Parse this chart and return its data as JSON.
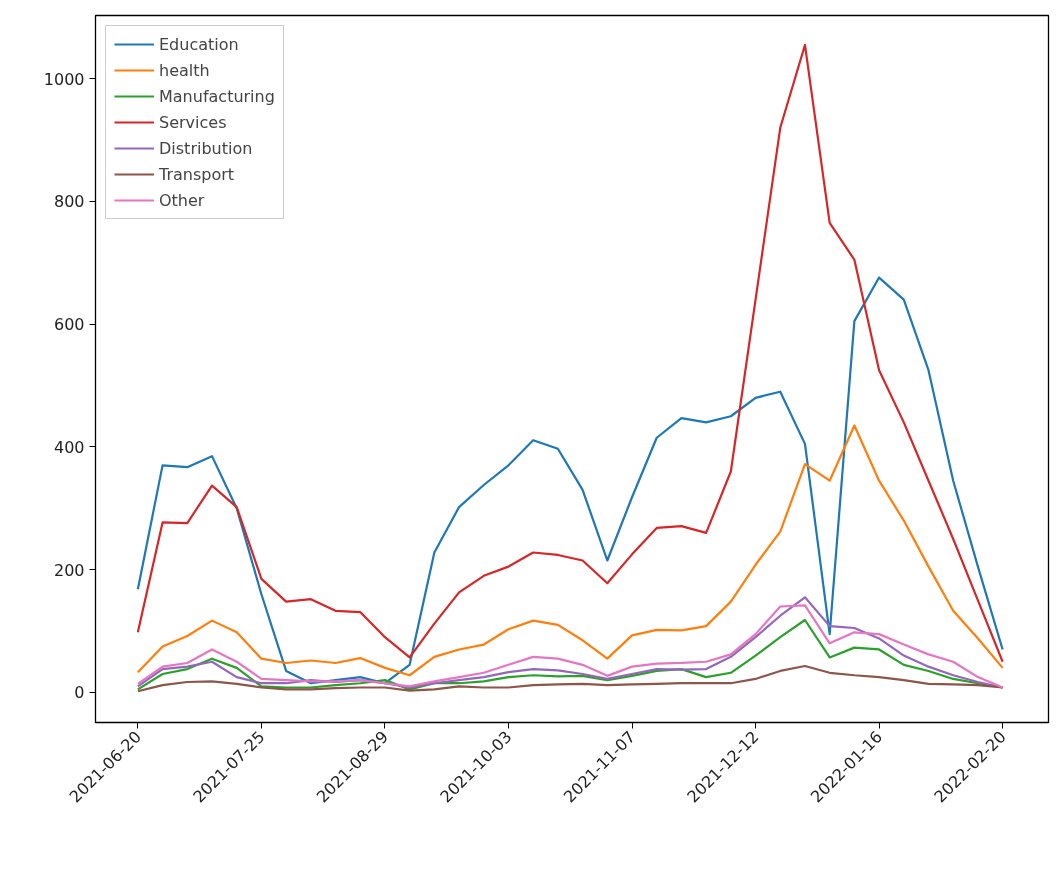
{
  "chart_data": {
    "type": "line",
    "x": [
      "2021-06-20",
      "2021-06-27",
      "2021-07-04",
      "2021-07-11",
      "2021-07-18",
      "2021-07-25",
      "2021-08-01",
      "2021-08-08",
      "2021-08-15",
      "2021-08-22",
      "2021-08-29",
      "2021-09-05",
      "2021-09-12",
      "2021-09-19",
      "2021-09-26",
      "2021-10-03",
      "2021-10-10",
      "2021-10-17",
      "2021-10-24",
      "2021-10-31",
      "2021-11-07",
      "2021-11-14",
      "2021-11-21",
      "2021-11-28",
      "2021-12-05",
      "2021-12-12",
      "2021-12-19",
      "2021-12-26",
      "2022-01-02",
      "2022-01-09",
      "2022-01-16",
      "2022-01-23",
      "2022-01-30",
      "2022-02-06",
      "2022-02-13",
      "2022-02-20"
    ],
    "series": [
      {
        "name": "Education",
        "color": "#1f77b4",
        "values": [
          168,
          370,
          367,
          385,
          300,
          160,
          35,
          15,
          20,
          25,
          15,
          45,
          228,
          302,
          338,
          370,
          411,
          397,
          330,
          215,
          318,
          415,
          447,
          440,
          450,
          480,
          490,
          405,
          95,
          605,
          676,
          640,
          525,
          345,
          205,
          70
        ]
      },
      {
        "name": "health",
        "color": "#ff7f0e",
        "values": [
          33,
          75,
          92,
          117,
          98,
          55,
          48,
          52,
          48,
          56,
          40,
          28,
          58,
          70,
          78,
          103,
          117,
          110,
          85,
          55,
          93,
          102,
          101,
          108,
          148,
          208,
          262,
          372,
          345,
          435,
          345,
          280,
          205,
          133,
          88,
          40
        ]
      },
      {
        "name": "Manufacturing",
        "color": "#2ca02c",
        "values": [
          5,
          30,
          38,
          55,
          40,
          10,
          8,
          8,
          12,
          15,
          20,
          5,
          15,
          15,
          18,
          25,
          28,
          26,
          27,
          20,
          27,
          35,
          38,
          25,
          32,
          60,
          90,
          118,
          57,
          73,
          70,
          45,
          35,
          22,
          15,
          8
        ]
      },
      {
        "name": "Services",
        "color": "#d62728",
        "values": [
          98,
          277,
          276,
          337,
          302,
          185,
          148,
          152,
          133,
          131,
          90,
          57,
          112,
          163,
          190,
          205,
          228,
          224,
          215,
          178,
          225,
          268,
          271,
          260,
          360,
          640,
          920,
          1055,
          765,
          705,
          525,
          440,
          345,
          250,
          150,
          50
        ]
      },
      {
        "name": "Distribution",
        "color": "#9467bd",
        "values": [
          10,
          38,
          42,
          50,
          25,
          15,
          15,
          20,
          17,
          20,
          15,
          8,
          15,
          20,
          25,
          33,
          38,
          36,
          30,
          22,
          30,
          38,
          37,
          38,
          58,
          90,
          125,
          155,
          108,
          105,
          88,
          60,
          42,
          28,
          17,
          8
        ]
      },
      {
        "name": "Transport",
        "color": "#8c564b",
        "values": [
          2,
          12,
          17,
          18,
          14,
          8,
          5,
          5,
          7,
          8,
          8,
          3,
          5,
          10,
          8,
          8,
          12,
          13,
          14,
          12,
          13,
          14,
          15,
          15,
          15,
          22,
          35,
          43,
          32,
          28,
          25,
          20,
          14,
          13,
          12,
          8
        ]
      },
      {
        "name": "Other",
        "color": "#e377c2",
        "values": [
          14,
          42,
          48,
          70,
          50,
          22,
          20,
          18,
          18,
          20,
          15,
          10,
          18,
          25,
          32,
          45,
          58,
          55,
          45,
          27,
          42,
          47,
          48,
          50,
          62,
          95,
          140,
          142,
          80,
          98,
          95,
          78,
          62,
          50,
          25,
          8
        ]
      }
    ],
    "xlim": [
      "2021-06-08",
      "2022-03-05"
    ],
    "xticks": [
      "2021-06-20",
      "2021-07-25",
      "2021-08-29",
      "2021-10-03",
      "2021-11-07",
      "2021-12-12",
      "2022-01-16",
      "2022-02-20"
    ],
    "ylim": [
      -49,
      1103
    ],
    "yticks": [
      0,
      200,
      400,
      600,
      800,
      1000
    ],
    "grid": false,
    "legend": "top left",
    "line_style": "solid"
  }
}
